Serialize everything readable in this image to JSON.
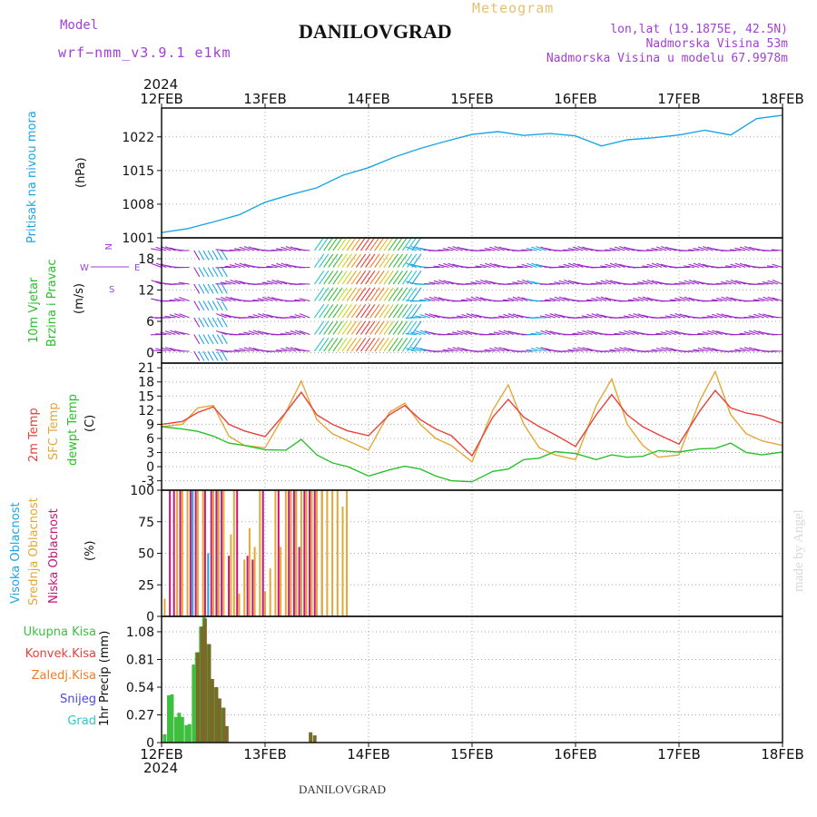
{
  "header": {
    "model_label": "Model",
    "model_name": "wrf−nmm_v3.9.1  e1km",
    "station": "DANILOVGRAD",
    "meteogram": "Meteogram",
    "lonlat": "lon,lat (19.1875E, 42.5N)",
    "altitude": "Nadmorska Visina 53m",
    "model_altitude": "Nadmorska Visina u modelu 67.9978m",
    "footer_station": "DANILOVGRAD",
    "watermark": "made by Angel"
  },
  "colors": {
    "pressure": "#1aa6e6",
    "temp": "#e8413b",
    "sfc": "#e3a836",
    "dewpt": "#27c22b",
    "total": "#3fbf3f",
    "convective": "#e8413b",
    "frozen": "#f07d2a",
    "snow": "#4848e0",
    "hail": "#2ec7c7",
    "high": "#1aa6e6",
    "mid": "#e3a836",
    "low": "#c8157a",
    "precip_bar": "#7a6a2a",
    "purple_text": "#a23fd6",
    "orange_text": "#e8c070"
  },
  "chart_data": [
    {
      "type": "line",
      "title": "Pritisak na nivou mora",
      "ylabel": "(hPa)",
      "x_top_labels": [
        "12FEB",
        "13FEB",
        "14FEB",
        "15FEB",
        "16FEB",
        "17FEB",
        "18FEB"
      ],
      "x_top_year": "2024",
      "yticks": [
        "1001",
        "1008",
        "1015",
        "1022"
      ],
      "ylim": [
        1001,
        1028
      ],
      "x": [
        0,
        0.25,
        0.5,
        0.75,
        1.0,
        1.25,
        1.5,
        1.75,
        2.0,
        2.25,
        2.5,
        2.75,
        3.0,
        3.25,
        3.5,
        3.75,
        4.0,
        4.25,
        4.5,
        4.75,
        5.0,
        5.25,
        5.5,
        5.75,
        6.0
      ],
      "series": [
        {
          "values": [
            1002.1,
            1002.9,
            1004.3,
            1005.8,
            1008.4,
            1010.0,
            1011.4,
            1014.0,
            1015.6,
            1017.8,
            1019.6,
            1021.1,
            1022.5,
            1023.1,
            1022.3,
            1022.7,
            1022.2,
            1020.1,
            1021.4,
            1021.8,
            1022.4,
            1023.4,
            1022.4,
            1025.8,
            1026.5
          ]
        }
      ]
    },
    {
      "type": "scatter",
      "title": "10m Vjetar Brzina i Pravac",
      "ylabel": "(m/s)",
      "direction_legend": [
        "N",
        "E",
        "S",
        "W"
      ],
      "yticks": [
        "0",
        "6",
        "12",
        "18"
      ],
      "ylim": [
        -2,
        22
      ]
    },
    {
      "type": "line",
      "ylabel": "(C)",
      "yticks": [
        "-3",
        "0",
        "3",
        "6",
        "9",
        "12",
        "15",
        "18",
        "21"
      ],
      "ylim": [
        -5,
        22
      ],
      "x": [
        0,
        0.2,
        0.35,
        0.5,
        0.65,
        0.8,
        1.0,
        1.2,
        1.35,
        1.5,
        1.65,
        1.8,
        2.0,
        2.2,
        2.35,
        2.5,
        2.65,
        2.8,
        3.0,
        3.2,
        3.35,
        3.5,
        3.65,
        3.8,
        4.0,
        4.2,
        4.35,
        4.5,
        4.65,
        4.8,
        5.0,
        5.2,
        5.35,
        5.5,
        5.65,
        5.8,
        6.0
      ],
      "series": [
        {
          "name": "2m Temp",
          "values": [
            9.0,
            9.6,
            11.5,
            12.7,
            9.0,
            7.6,
            6.4,
            11.5,
            15.8,
            11.0,
            9.0,
            7.6,
            6.6,
            11.0,
            13.0,
            10.0,
            8.0,
            6.6,
            2.3,
            10.5,
            14.3,
            10.5,
            8.5,
            6.8,
            4.3,
            11.0,
            15.3,
            11.0,
            8.5,
            6.8,
            4.8,
            11.8,
            16.2,
            12.5,
            11.4,
            10.8,
            9.2
          ]
        },
        {
          "name": "SFC Temp",
          "values": [
            8.5,
            9.0,
            12.5,
            13.0,
            6.5,
            4.5,
            4.0,
            11.5,
            18.2,
            10.0,
            7.0,
            5.5,
            3.5,
            11.5,
            13.5,
            9.0,
            6.0,
            4.5,
            1.0,
            12.0,
            17.4,
            9.0,
            4.0,
            2.5,
            1.5,
            13.0,
            18.6,
            9.0,
            4.5,
            2.0,
            2.5,
            14.0,
            20.2,
            11.0,
            7.0,
            5.5,
            4.5
          ]
        },
        {
          "name": "dewpt Temp",
          "values": [
            8.5,
            8.0,
            7.5,
            6.5,
            5.0,
            4.5,
            3.6,
            3.5,
            5.8,
            2.5,
            0.8,
            0.0,
            -2.0,
            -0.7,
            0.1,
            -0.5,
            -2.0,
            -3.0,
            -3.2,
            -1.0,
            -0.5,
            1.5,
            1.8,
            3.2,
            2.8,
            1.5,
            2.5,
            2.0,
            2.2,
            3.4,
            3.1,
            3.8,
            3.9,
            5.0,
            3.0,
            2.5,
            3.1
          ]
        }
      ]
    },
    {
      "type": "bar",
      "ylabel": "(%)",
      "yticks": [
        "0",
        "25",
        "50",
        "75",
        "100"
      ],
      "ylim": [
        0,
        100
      ],
      "series": [
        {
          "name": "Visoka Oblacnost",
          "x": [
            0.3,
            0.45,
            0.5,
            0.55,
            1.3,
            1.35,
            1.45,
            1.5,
            1.55
          ],
          "values": [
            100,
            50,
            100,
            100,
            100,
            54,
            100,
            100,
            100
          ]
        },
        {
          "name": "Srednja Oblacnost",
          "x": [
            0.03,
            0.15,
            0.2,
            0.25,
            0.35,
            0.4,
            0.5,
            0.55,
            0.6,
            0.67,
            0.7,
            0.75,
            0.8,
            0.85,
            0.9,
            0.95,
            1.0,
            1.05,
            1.1,
            1.15,
            1.2,
            1.25,
            1.3,
            1.35,
            1.4,
            1.45,
            1.5,
            1.55,
            1.6,
            1.65,
            1.7,
            1.75,
            1.79
          ],
          "values": [
            14,
            100,
            100,
            100,
            100,
            100,
            100,
            100,
            100,
            65,
            100,
            18,
            45,
            70,
            55,
            100,
            20,
            38,
            100,
            55,
            100,
            100,
            100,
            100,
            100,
            100,
            100,
            100,
            100,
            100,
            100,
            87,
            100
          ]
        },
        {
          "name": "Niska Oblacnost",
          "x": [
            0.08,
            0.12,
            0.18,
            0.28,
            0.33,
            0.42,
            0.48,
            0.53,
            0.58,
            0.65,
            0.73,
            0.83,
            0.88,
            0.98,
            1.13,
            1.23,
            1.28,
            1.33,
            1.38,
            1.43,
            1.48
          ],
          "values": [
            100,
            100,
            100,
            100,
            100,
            100,
            100,
            100,
            100,
            48,
            100,
            48,
            45,
            100,
            100,
            100,
            100,
            55,
            100,
            100,
            100
          ]
        }
      ]
    },
    {
      "type": "bar",
      "ylabel": "1hr Precip (mm)",
      "legend": [
        "Ukupna Kisa",
        "Konvek.Kisa",
        "Zaledj.Kisa",
        "Snijeg",
        "Grad"
      ],
      "yticks": [
        "0",
        "0.27",
        "0.54",
        "0.81",
        "1.08"
      ],
      "ylim": [
        0,
        1.23
      ],
      "x_bottom_labels": [
        "12FEB",
        "13FEB",
        "14FEB",
        "15FEB",
        "16FEB",
        "17FEB",
        "18FEB"
      ],
      "x_bottom_year": "2024",
      "series": [
        {
          "name": "Ukupna Kisa",
          "x": [
            0.03,
            0.07,
            0.1,
            0.14,
            0.17,
            0.2,
            0.24,
            0.27,
            0.31,
            0.34,
            0.38,
            0.41,
            0.45,
            0.48,
            0.52,
            0.55,
            0.59,
            0.62
          ],
          "values": [
            0.08,
            0.46,
            0.47,
            0.25,
            0.29,
            0.25,
            0.17,
            0.18,
            0.76,
            0.88,
            1.13,
            1.22,
            0.96,
            0.62,
            0.54,
            0.43,
            0.34,
            0.16
          ]
        },
        {
          "name": "Konvek.Kisa",
          "x": [
            0.35,
            0.39,
            0.42,
            0.46,
            0.49,
            0.53,
            0.56,
            0.6,
            0.63,
            1.44,
            1.48
          ],
          "values": [
            0.88,
            1.13,
            1.21,
            0.96,
            0.62,
            0.54,
            0.43,
            0.34,
            0.16,
            0.1,
            0.07
          ]
        }
      ]
    }
  ]
}
